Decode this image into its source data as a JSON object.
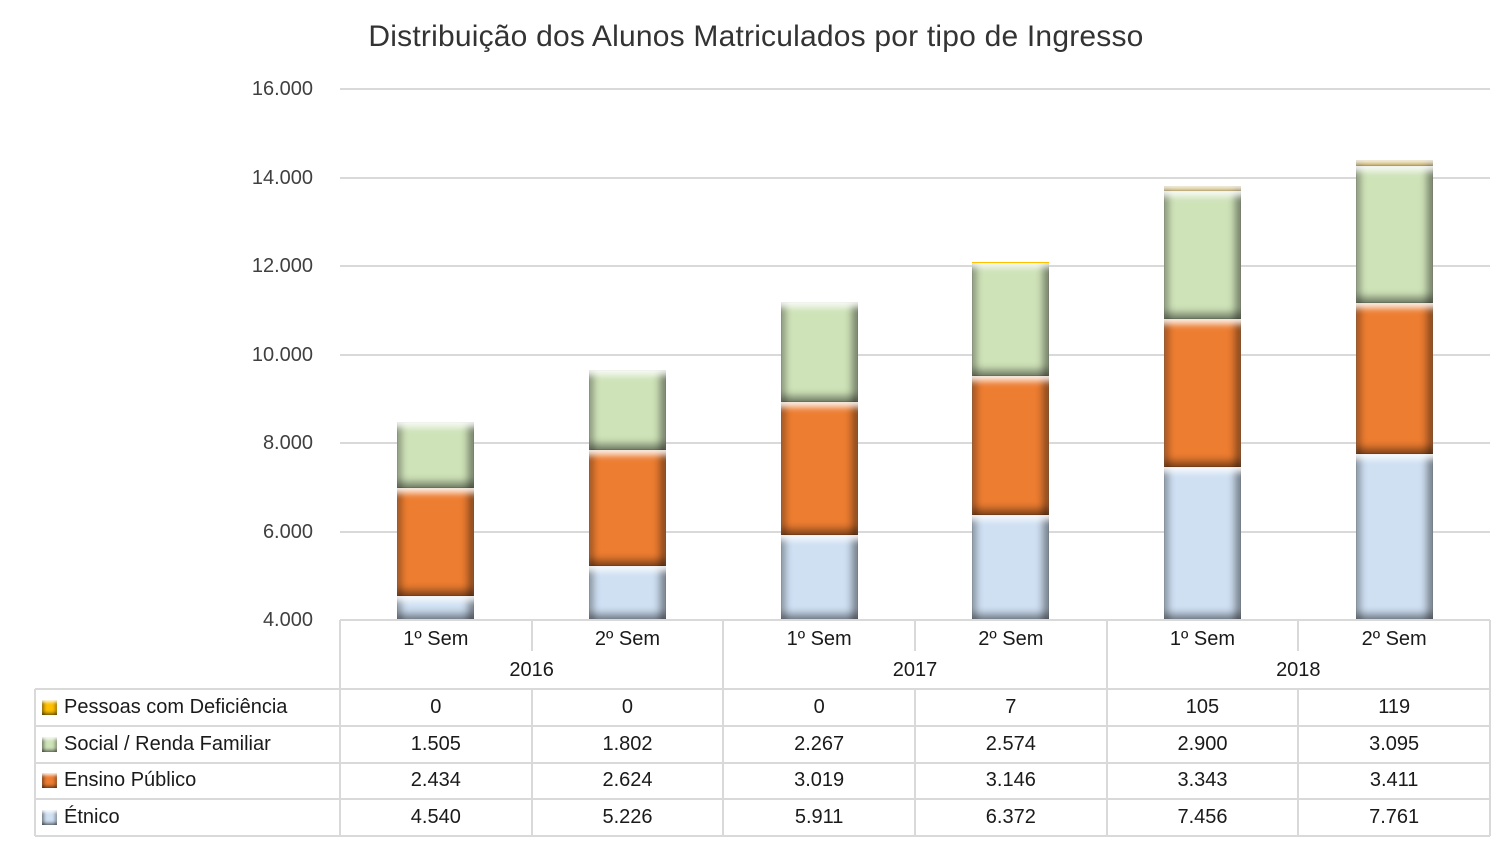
{
  "page": {
    "background": "#ffffff"
  },
  "chart_data": {
    "type": "bar",
    "stacked": true,
    "title": "Distribuição dos Alunos Matriculados por tipo de Ingresso",
    "grid": true,
    "legend_position": "table-left-column",
    "y_axis": {
      "min": 4000,
      "max": 16000,
      "step": 2000,
      "ticks": [
        {
          "value": 16000,
          "label": "16.000"
        },
        {
          "value": 14000,
          "label": "14.000"
        },
        {
          "value": 12000,
          "label": "12.000"
        },
        {
          "value": 10000,
          "label": "10.000"
        },
        {
          "value": 8000,
          "label": "8.000"
        },
        {
          "value": 6000,
          "label": "6.000"
        },
        {
          "value": 4000,
          "label": "4.000"
        }
      ]
    },
    "x_axis": {
      "groups": [
        {
          "year": "2016",
          "semesters": [
            "1º Sem",
            "2º Sem"
          ]
        },
        {
          "year": "2017",
          "semesters": [
            "1º Sem",
            "2º Sem"
          ]
        },
        {
          "year": "2018",
          "semesters": [
            "1º Sem",
            "2º Sem"
          ]
        }
      ]
    },
    "series": [
      {
        "name": "Pessoas com Deficiência",
        "slug": "pessoas-com-deficiencia",
        "color": "#ffc000",
        "values": [
          0,
          0,
          0,
          7,
          105,
          119
        ],
        "labels": [
          "0",
          "0",
          "0",
          "7",
          "105",
          "119"
        ]
      },
      {
        "name": "Social / Renda Familiar",
        "slug": "social-renda-familiar",
        "color": "#cfe3b9",
        "values": [
          1505,
          1802,
          2267,
          2574,
          2900,
          3095
        ],
        "labels": [
          "1.505",
          "1.802",
          "2.267",
          "2.574",
          "2.900",
          "3.095"
        ]
      },
      {
        "name": "Ensino Público",
        "slug": "ensino-publico",
        "color": "#ed7d31",
        "values": [
          2434,
          2624,
          3019,
          3146,
          3343,
          3411
        ],
        "labels": [
          "2.434",
          "2.624",
          "3.019",
          "3.146",
          "3.343",
          "3.411"
        ]
      },
      {
        "name": "Étnico",
        "slug": "etnico",
        "color": "#cfe0f3",
        "values": [
          4540,
          5226,
          5911,
          6372,
          7456,
          7761
        ],
        "labels": [
          "4.540",
          "5.226",
          "5.911",
          "6.372",
          "7.456",
          "7.761"
        ]
      }
    ],
    "stack_order_bottom_to_top": [
      "Étnico",
      "Ensino Público",
      "Social / Renda Familiar",
      "Pessoas com Deficiência"
    ],
    "colors": {
      "gridline": "#d9d9d9",
      "table_border": "#d9d9d9",
      "title_text": "#333333",
      "axis_text": "#404040",
      "table_text": "#1a1a1a"
    }
  }
}
